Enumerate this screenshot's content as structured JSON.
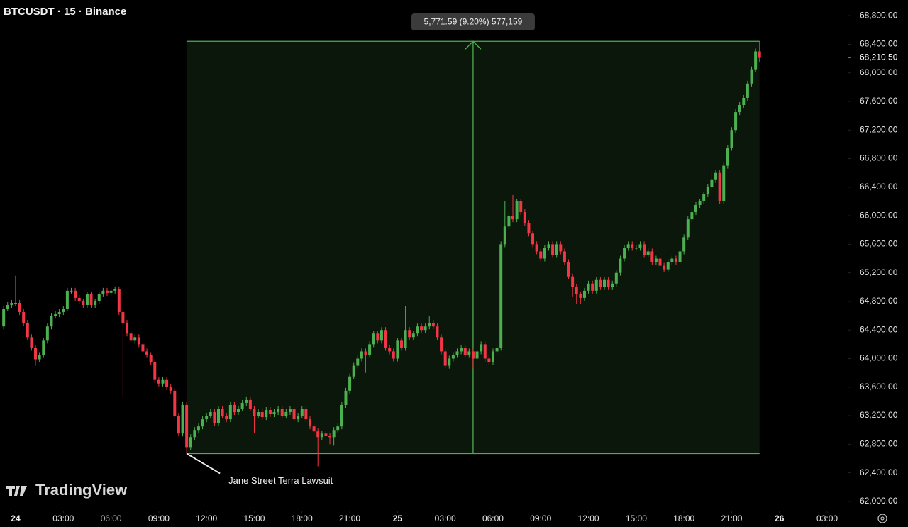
{
  "chart_data": {
    "type": "candlestick",
    "title": "BTCUSDT · 15 · Binance",
    "watermark": "TradingView",
    "up_color": "#4caf50",
    "down_color": "#f23645",
    "xlim": [
      -0.98,
      52.29
    ],
    "ylim": [
      61870,
      69020
    ],
    "xticks": [
      {
        "value": 0,
        "label": "24"
      },
      {
        "value": 3,
        "label": "03:00"
      },
      {
        "value": 6,
        "label": "06:00"
      },
      {
        "value": 9,
        "label": "09:00"
      },
      {
        "value": 12,
        "label": "12:00"
      },
      {
        "value": 15,
        "label": "15:00"
      },
      {
        "value": 18,
        "label": "18:00"
      },
      {
        "value": 21,
        "label": "21:00"
      },
      {
        "value": 24,
        "label": "25"
      },
      {
        "value": 27,
        "label": "03:00"
      },
      {
        "value": 30,
        "label": "06:00"
      },
      {
        "value": 33,
        "label": "09:00"
      },
      {
        "value": 36,
        "label": "12:00"
      },
      {
        "value": 39,
        "label": "15:00"
      },
      {
        "value": 42,
        "label": "18:00"
      },
      {
        "value": 45,
        "label": "21:00"
      },
      {
        "value": 48,
        "label": "26"
      },
      {
        "value": 51,
        "label": "03:00"
      }
    ],
    "yticks": [
      {
        "value": 62000,
        "label": "62,000.00"
      },
      {
        "value": 62400,
        "label": "62,400.00"
      },
      {
        "value": 62800,
        "label": "62,800.00"
      },
      {
        "value": 63200,
        "label": "63,200.00"
      },
      {
        "value": 63600,
        "label": "63,600.00"
      },
      {
        "value": 64000,
        "label": "64,000.00"
      },
      {
        "value": 64400,
        "label": "64,400.00"
      },
      {
        "value": 64800,
        "label": "64,800.00"
      },
      {
        "value": 65200,
        "label": "65,200.00"
      },
      {
        "value": 65600,
        "label": "65,600.00"
      },
      {
        "value": 66000,
        "label": "66,000.00"
      },
      {
        "value": 66400,
        "label": "66,400.00"
      },
      {
        "value": 66800,
        "label": "66,800.00"
      },
      {
        "value": 67200,
        "label": "67,200.00"
      },
      {
        "value": 67600,
        "label": "67,600.00"
      },
      {
        "value": 68000,
        "label": "68,000.00"
      },
      {
        "value": 68400,
        "label": "68,400.00"
      },
      {
        "value": 68800,
        "label": "68,800.00"
      }
    ],
    "last_price": {
      "value": 68210.5,
      "label": "68,210.50"
    },
    "range": {
      "x0": 10.75,
      "x1": 46.75,
      "y0": 62670,
      "y1": 68441.59,
      "label": "5,771.59 (9.20%) 577,159"
    },
    "annotation": {
      "text": "Jane Street Terra Lawsuit",
      "x": 10.75,
      "y": 62670
    },
    "x": [
      -0.75,
      -0.5,
      -0.25,
      0,
      0.25,
      0.5,
      0.75,
      1,
      1.25,
      1.5,
      1.75,
      2,
      2.25,
      2.5,
      2.75,
      3,
      3.25,
      3.5,
      3.75,
      4,
      4.25,
      4.5,
      4.75,
      5,
      5.25,
      5.5,
      5.75,
      6,
      6.25,
      6.5,
      6.75,
      7,
      7.25,
      7.5,
      7.75,
      8,
      8.25,
      8.5,
      8.75,
      9,
      9.25,
      9.5,
      9.75,
      10,
      10.25,
      10.5,
      10.75,
      11,
      11.25,
      11.5,
      11.75,
      12,
      12.25,
      12.5,
      12.75,
      13,
      13.25,
      13.5,
      13.75,
      14,
      14.25,
      14.5,
      14.75,
      15,
      15.25,
      15.5,
      15.75,
      16,
      16.25,
      16.5,
      16.75,
      17,
      17.25,
      17.5,
      17.75,
      18,
      18.25,
      18.5,
      18.75,
      19,
      19.25,
      19.5,
      19.75,
      20,
      20.25,
      20.5,
      20.75,
      21,
      21.25,
      21.5,
      21.75,
      22,
      22.25,
      22.5,
      22.75,
      23,
      23.25,
      23.5,
      23.75,
      24,
      24.25,
      24.5,
      24.75,
      25,
      25.25,
      25.5,
      25.75,
      26,
      26.25,
      26.5,
      26.75,
      27,
      27.25,
      27.5,
      27.75,
      28,
      28.25,
      28.5,
      28.75,
      29,
      29.25,
      29.5,
      29.75,
      30,
      30.25,
      30.5,
      30.75,
      31,
      31.25,
      31.5,
      31.75,
      32,
      32.25,
      32.5,
      32.75,
      33,
      33.25,
      33.5,
      33.75,
      34,
      34.25,
      34.5,
      34.75,
      35,
      35.25,
      35.5,
      35.75,
      36,
      36.25,
      36.5,
      36.75,
      37,
      37.25,
      37.5,
      37.75,
      38,
      38.25,
      38.5,
      38.75,
      39,
      39.25,
      39.5,
      39.75,
      40,
      40.25,
      40.5,
      40.75,
      41,
      41.25,
      41.5,
      41.75,
      42,
      42.25,
      42.5,
      42.75,
      43,
      43.25,
      43.5,
      43.75,
      44,
      44.25,
      44.5,
      44.75,
      45,
      45.25,
      45.5,
      45.75,
      46,
      46.25,
      46.5,
      46.75
    ],
    "candles": [
      [
        64450,
        64740,
        64410,
        64700
      ],
      [
        64700,
        64790,
        64660,
        64750
      ],
      [
        64750,
        64820,
        64710,
        64780
      ],
      [
        64780,
        65160,
        64740,
        64780
      ],
      [
        64780,
        64820,
        64610,
        64650
      ],
      [
        64650,
        64690,
        64460,
        64500
      ],
      [
        64500,
        64540,
        64260,
        64300
      ],
      [
        64300,
        64340,
        64110,
        64150
      ],
      [
        64150,
        64190,
        63900,
        63990
      ],
      [
        63990,
        64090,
        63950,
        64050
      ],
      [
        64050,
        64290,
        64010,
        64250
      ],
      [
        64250,
        64490,
        64210,
        64450
      ],
      [
        64450,
        64640,
        64410,
        64600
      ],
      [
        64600,
        64660,
        64560,
        64620
      ],
      [
        64620,
        64690,
        64580,
        64650
      ],
      [
        64650,
        64740,
        64610,
        64700
      ],
      [
        64700,
        64990,
        64660,
        64950
      ],
      [
        64950,
        64990,
        64910,
        64950
      ],
      [
        64950,
        64990,
        64810,
        64850
      ],
      [
        64850,
        64890,
        64760,
        64800
      ],
      [
        64800,
        64840,
        64710,
        64750
      ],
      [
        64750,
        64940,
        64710,
        64900
      ],
      [
        64900,
        64940,
        64710,
        64750
      ],
      [
        64750,
        64840,
        64710,
        64800
      ],
      [
        64800,
        64940,
        64760,
        64900
      ],
      [
        64900,
        64990,
        64860,
        64950
      ],
      [
        64950,
        64990,
        64880,
        64920
      ],
      [
        64920,
        64990,
        64880,
        64950
      ],
      [
        64950,
        65010,
        64910,
        64970
      ],
      [
        64970,
        65010,
        64610,
        64650
      ],
      [
        64650,
        64690,
        63460,
        64500
      ],
      [
        64500,
        64540,
        64310,
        64350
      ],
      [
        64350,
        64390,
        64210,
        64250
      ],
      [
        64250,
        64340,
        64210,
        64300
      ],
      [
        64300,
        64340,
        64160,
        64200
      ],
      [
        64200,
        64240,
        64060,
        64100
      ],
      [
        64100,
        64140,
        64010,
        64050
      ],
      [
        64050,
        64090,
        63910,
        63950
      ],
      [
        63950,
        63990,
        63660,
        63700
      ],
      [
        63700,
        63740,
        63610,
        63650
      ],
      [
        63650,
        63740,
        63610,
        63700
      ],
      [
        63700,
        63740,
        63560,
        63600
      ],
      [
        63600,
        63640,
        63510,
        63550
      ],
      [
        63550,
        63590,
        63160,
        63200
      ],
      [
        63200,
        63240,
        62910,
        62950
      ],
      [
        62950,
        63390,
        62910,
        63350
      ],
      [
        63350,
        63390,
        62670,
        62760
      ],
      [
        62760,
        62940,
        62720,
        62900
      ],
      [
        62900,
        63040,
        62860,
        63000
      ],
      [
        63000,
        63090,
        62960,
        63050
      ],
      [
        63050,
        63190,
        63010,
        63150
      ],
      [
        63150,
        63240,
        63110,
        63200
      ],
      [
        63200,
        63290,
        63160,
        63250
      ],
      [
        63250,
        63290,
        63060,
        63100
      ],
      [
        63100,
        63340,
        63060,
        63300
      ],
      [
        63300,
        63340,
        63160,
        63200
      ],
      [
        63200,
        63240,
        63110,
        63150
      ],
      [
        63150,
        63390,
        63110,
        63350
      ],
      [
        63350,
        63390,
        63210,
        63250
      ],
      [
        63250,
        63340,
        63210,
        63300
      ],
      [
        63300,
        63420,
        63260,
        63380
      ],
      [
        63380,
        63460,
        63340,
        63420
      ],
      [
        63420,
        63460,
        63260,
        63300
      ],
      [
        63300,
        63340,
        62960,
        63200
      ],
      [
        63200,
        63290,
        63160,
        63250
      ],
      [
        63250,
        63290,
        63140,
        63180
      ],
      [
        63180,
        63320,
        63140,
        63280
      ],
      [
        63280,
        63320,
        63180,
        63220
      ],
      [
        63220,
        63290,
        63180,
        63250
      ],
      [
        63250,
        63340,
        63210,
        63300
      ],
      [
        63300,
        63340,
        63160,
        63200
      ],
      [
        63200,
        63290,
        63160,
        63250
      ],
      [
        63250,
        63340,
        63210,
        63300
      ],
      [
        63300,
        63340,
        63110,
        63150
      ],
      [
        63150,
        63240,
        63110,
        63200
      ],
      [
        63200,
        63340,
        63160,
        63300
      ],
      [
        63300,
        63340,
        63110,
        63150
      ],
      [
        63150,
        63190,
        63010,
        63050
      ],
      [
        63050,
        63090,
        62940,
        62980
      ],
      [
        62980,
        63020,
        62490,
        62900
      ],
      [
        62900,
        62990,
        62860,
        62950
      ],
      [
        62950,
        62990,
        62880,
        62920
      ],
      [
        62920,
        62960,
        62800,
        62900
      ],
      [
        62900,
        63040,
        62780,
        63000
      ],
      [
        63000,
        63090,
        62960,
        63050
      ],
      [
        63050,
        63390,
        63010,
        63350
      ],
      [
        63350,
        63590,
        63310,
        63550
      ],
      [
        63550,
        63790,
        63510,
        63750
      ],
      [
        63750,
        63940,
        63710,
        63900
      ],
      [
        63900,
        64040,
        63860,
        64000
      ],
      [
        64000,
        64140,
        63960,
        64100
      ],
      [
        64100,
        64140,
        63800,
        64050
      ],
      [
        64050,
        64240,
        64010,
        64200
      ],
      [
        64200,
        64390,
        64160,
        64350
      ],
      [
        64350,
        64390,
        64210,
        64250
      ],
      [
        64250,
        64440,
        64210,
        64400
      ],
      [
        64400,
        64440,
        64110,
        64150
      ],
      [
        64150,
        64190,
        64060,
        64100
      ],
      [
        64100,
        64140,
        63960,
        64000
      ],
      [
        64000,
        64290,
        63960,
        64250
      ],
      [
        64250,
        64290,
        64110,
        64150
      ],
      [
        64150,
        64740,
        64110,
        64400
      ],
      [
        64400,
        64440,
        64260,
        64300
      ],
      [
        64300,
        64390,
        64260,
        64350
      ],
      [
        64350,
        64490,
        64310,
        64450
      ],
      [
        64450,
        64490,
        64360,
        64400
      ],
      [
        64400,
        64490,
        64360,
        64450
      ],
      [
        64450,
        64590,
        64410,
        64500
      ],
      [
        64500,
        64540,
        64410,
        64450
      ],
      [
        64450,
        64490,
        64260,
        64300
      ],
      [
        64300,
        64340,
        64060,
        64100
      ],
      [
        64100,
        64140,
        63860,
        63900
      ],
      [
        63900,
        64040,
        63860,
        64000
      ],
      [
        64000,
        64090,
        63960,
        64050
      ],
      [
        64050,
        64140,
        64010,
        64100
      ],
      [
        64100,
        64190,
        64060,
        64150
      ],
      [
        64150,
        64190,
        64010,
        64050
      ],
      [
        64050,
        64140,
        64010,
        64100
      ],
      [
        64100,
        64140,
        63860,
        64000
      ],
      [
        64000,
        64140,
        63960,
        64100
      ],
      [
        64100,
        64240,
        64060,
        64200
      ],
      [
        64200,
        64240,
        63960,
        64000
      ],
      [
        64000,
        64040,
        63910,
        63950
      ],
      [
        63950,
        64140,
        63910,
        64100
      ],
      [
        64100,
        64190,
        64060,
        64150
      ],
      [
        64150,
        65640,
        64110,
        65600
      ],
      [
        65600,
        66200,
        65560,
        65850
      ],
      [
        65850,
        66040,
        65810,
        66000
      ],
      [
        66000,
        66290,
        65910,
        65950
      ],
      [
        65950,
        66240,
        65910,
        66200
      ],
      [
        66200,
        66240,
        66010,
        66050
      ],
      [
        66050,
        66090,
        65860,
        65900
      ],
      [
        65900,
        65940,
        65710,
        65750
      ],
      [
        65750,
        65790,
        65560,
        65600
      ],
      [
        65600,
        65640,
        65460,
        65500
      ],
      [
        65500,
        65540,
        65360,
        65400
      ],
      [
        65400,
        65590,
        65360,
        65550
      ],
      [
        65550,
        65640,
        65510,
        65600
      ],
      [
        65600,
        65640,
        65410,
        65450
      ],
      [
        65450,
        65640,
        65410,
        65600
      ],
      [
        65600,
        65640,
        65460,
        65500
      ],
      [
        65500,
        65540,
        65310,
        65350
      ],
      [
        65350,
        65390,
        65110,
        65150
      ],
      [
        65150,
        65190,
        64860,
        65000
      ],
      [
        65000,
        65040,
        64760,
        64900
      ],
      [
        64900,
        64940,
        64760,
        64850
      ],
      [
        64850,
        64990,
        64810,
        64950
      ],
      [
        64950,
        65090,
        64910,
        65050
      ],
      [
        65050,
        65090,
        64910,
        64950
      ],
      [
        64950,
        65140,
        64910,
        65100
      ],
      [
        65100,
        65140,
        64960,
        65000
      ],
      [
        65000,
        65140,
        64960,
        65100
      ],
      [
        65100,
        65140,
        64960,
        65000
      ],
      [
        65000,
        65090,
        64960,
        65050
      ],
      [
        65050,
        65240,
        65010,
        65200
      ],
      [
        65200,
        65440,
        65160,
        65400
      ],
      [
        65400,
        65590,
        65360,
        65550
      ],
      [
        65550,
        65640,
        65510,
        65600
      ],
      [
        65600,
        65640,
        65510,
        65550
      ],
      [
        65550,
        65590,
        65510,
        65550
      ],
      [
        65550,
        65640,
        65510,
        65600
      ],
      [
        65600,
        65640,
        65410,
        65450
      ],
      [
        65450,
        65540,
        65410,
        65500
      ],
      [
        65500,
        65540,
        65310,
        65350
      ],
      [
        65350,
        65440,
        65310,
        65400
      ],
      [
        65400,
        65440,
        65260,
        65300
      ],
      [
        65300,
        65340,
        65210,
        65250
      ],
      [
        65250,
        65390,
        65210,
        65350
      ],
      [
        65350,
        65440,
        65310,
        65400
      ],
      [
        65400,
        65440,
        65310,
        65350
      ],
      [
        65350,
        65540,
        65310,
        65500
      ],
      [
        65500,
        65740,
        65460,
        65700
      ],
      [
        65700,
        65990,
        65660,
        65950
      ],
      [
        65950,
        66090,
        65910,
        66050
      ],
      [
        66050,
        66190,
        66010,
        66150
      ],
      [
        66150,
        66240,
        66110,
        66200
      ],
      [
        66200,
        66340,
        66160,
        66300
      ],
      [
        66300,
        66440,
        66260,
        66400
      ],
      [
        66400,
        66620,
        66360,
        66500
      ],
      [
        66500,
        66640,
        66460,
        66600
      ],
      [
        66600,
        66640,
        66160,
        66200
      ],
      [
        66200,
        66740,
        66160,
        66700
      ],
      [
        66700,
        66990,
        66660,
        66950
      ],
      [
        66950,
        67240,
        66910,
        67200
      ],
      [
        67200,
        67490,
        67160,
        67450
      ],
      [
        67450,
        67590,
        67410,
        67550
      ],
      [
        67550,
        67690,
        67510,
        67650
      ],
      [
        67650,
        67890,
        67610,
        67850
      ],
      [
        67850,
        68090,
        67810,
        68050
      ],
      [
        68050,
        68340,
        68010,
        68300
      ],
      [
        68300,
        68441.59,
        68150,
        68210.5
      ]
    ]
  }
}
